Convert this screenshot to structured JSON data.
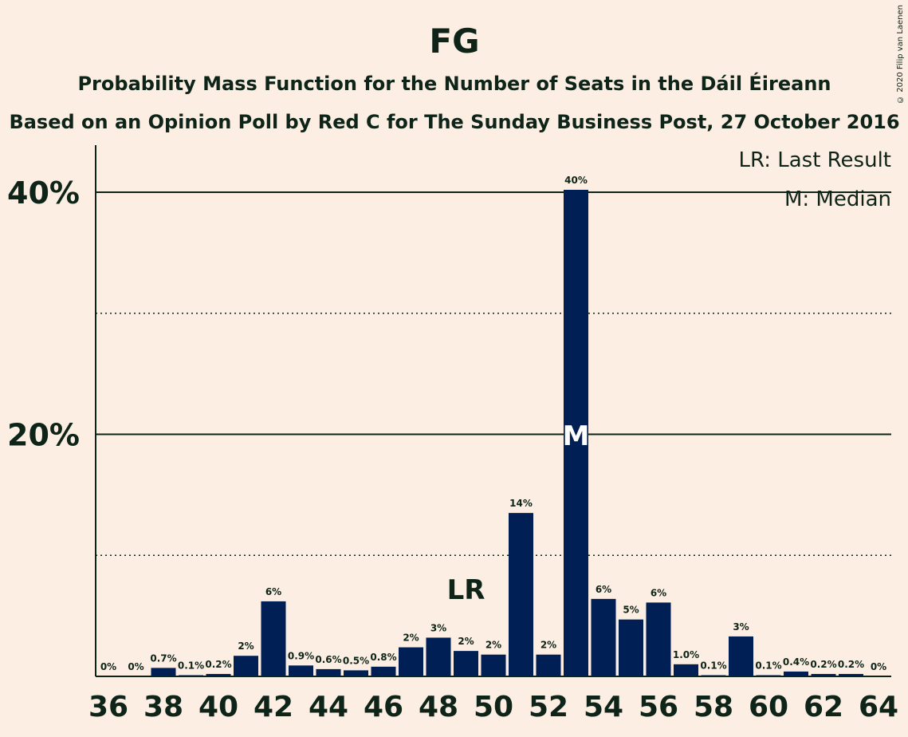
{
  "chart_data": {
    "type": "bar",
    "title": "FG",
    "subtitle_1": "Probability Mass Function for the Number of Seats in the Dáil Éireann",
    "subtitle_2": "Based on an Opinion Poll by Red C for The Sunday Business Post, 27 October 2016",
    "legend": [
      "LR: Last Result",
      "M: Median"
    ],
    "legend_placement": "top-right",
    "x": [
      36,
      37,
      38,
      39,
      40,
      41,
      42,
      43,
      44,
      45,
      46,
      47,
      48,
      49,
      50,
      51,
      52,
      53,
      54,
      55,
      56,
      57,
      58,
      59,
      60,
      61,
      62,
      63,
      64
    ],
    "values": [
      0,
      0,
      0.7,
      0.1,
      0.2,
      1.7,
      6.2,
      0.9,
      0.6,
      0.5,
      0.8,
      2.4,
      3.2,
      2.1,
      1.8,
      13.5,
      1.8,
      40.2,
      6.4,
      4.7,
      6.1,
      1.0,
      0.1,
      3.3,
      0.1,
      0.4,
      0.2,
      0.2,
      0
    ],
    "data_labels": [
      "0%",
      "0%",
      "0.7%",
      "0.1%",
      "0.2%",
      "2%",
      "6%",
      "0.9%",
      "0.6%",
      "0.5%",
      "0.8%",
      "2%",
      "3%",
      "2%",
      "2%",
      "14%",
      "2%",
      "40%",
      "6%",
      "5%",
      "6%",
      "1.0%",
      "0.1%",
      "3%",
      "0.1%",
      "0.4%",
      "0.2%",
      "0.2%",
      "0%"
    ],
    "x_tick_labels": [
      "36",
      "38",
      "40",
      "42",
      "44",
      "46",
      "48",
      "50",
      "52",
      "54",
      "56",
      "58",
      "60",
      "62",
      "64"
    ],
    "y_tick_labels": [
      "20%",
      "40%"
    ],
    "ylim": [
      0,
      44
    ],
    "major_grid": [
      20,
      40
    ],
    "minor_grid": [
      10,
      30
    ],
    "last_result": {
      "seat": 49,
      "label": "LR"
    },
    "median": {
      "seat": 53,
      "label": "M"
    },
    "bar_color": "#001f54",
    "background": "#fdeee3"
  },
  "copyright": "© 2020 Filip van Laenen"
}
